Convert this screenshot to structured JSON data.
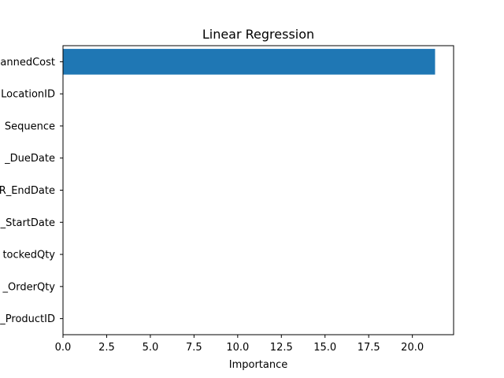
{
  "chart_data": {
    "type": "bar",
    "orientation": "horizontal",
    "title": "Linear Regression",
    "xlabel": "Importance",
    "ylabel": "",
    "categories": [
      "annedCost",
      "LocationID",
      "Sequence",
      "_DueDate",
      "R_EndDate",
      "_StartDate",
      "tockedQty",
      "_OrderQty",
      "_ProductID"
    ],
    "values": [
      21.3,
      0,
      0,
      0,
      0,
      0,
      0,
      0,
      0
    ],
    "xlim": [
      0,
      22.36
    ],
    "x_ticks": [
      0,
      2.5,
      5,
      7.5,
      10,
      12.5,
      15,
      17.5,
      20
    ],
    "x_tick_labels": [
      "0.0",
      "2.5",
      "5.0",
      "7.5",
      "10.0",
      "12.5",
      "15.0",
      "17.5",
      "20.0"
    ],
    "bar_color": "#1f77b4",
    "grid": false,
    "legend": false
  }
}
